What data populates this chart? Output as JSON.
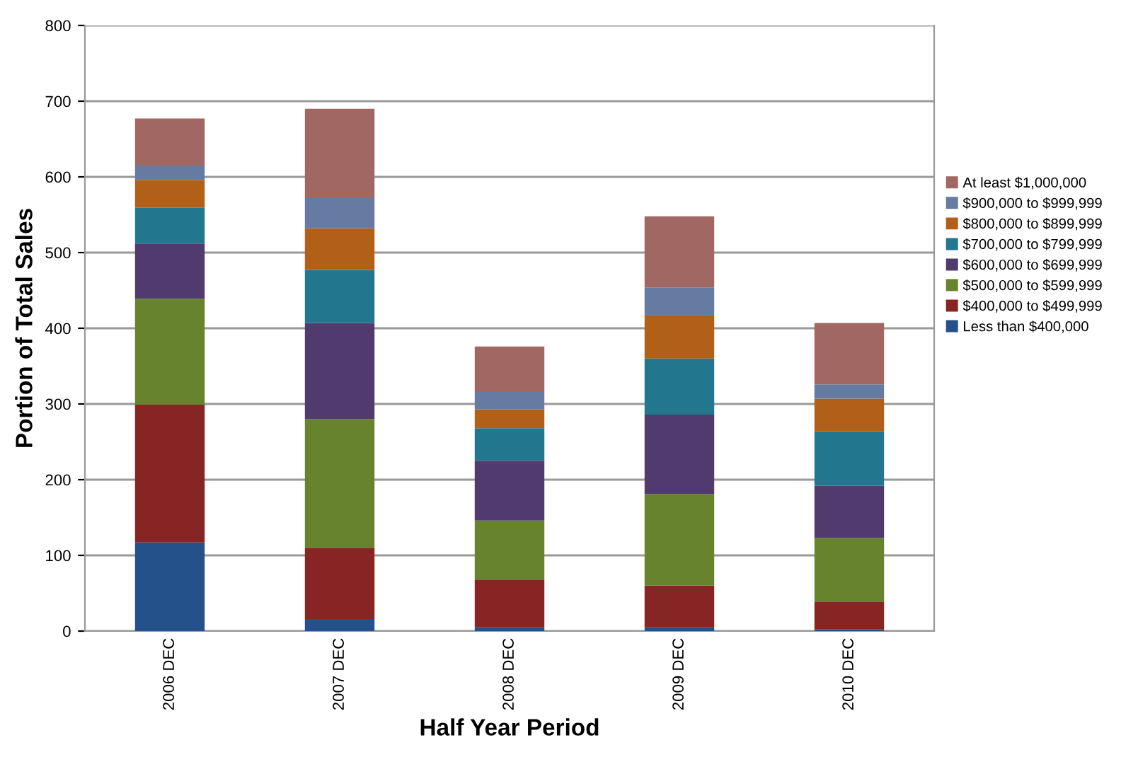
{
  "chart_data": {
    "type": "bar",
    "stacked": true,
    "xlabel": "Half Year Period",
    "ylabel": "Portion of Total Sales",
    "categories": [
      "2006 DEC",
      "2007 DEC",
      "2008 DEC",
      "2009 DEC",
      "2010 DEC"
    ],
    "series": [
      {
        "name": "Less than $400,000",
        "color": "#25518a",
        "values": [
          117,
          16,
          5,
          5,
          2
        ]
      },
      {
        "name": "$400,000 to $499,999",
        "color": "#872524",
        "values": [
          182,
          94,
          63,
          55,
          37
        ]
      },
      {
        "name": "$500,000 to $599,999",
        "color": "#68832e",
        "values": [
          140,
          170,
          78,
          121,
          84
        ]
      },
      {
        "name": "$600,000 to $699,999",
        "color": "#513a6d",
        "values": [
          73,
          127,
          79,
          105,
          69
        ]
      },
      {
        "name": "$700,000 to $799,999",
        "color": "#22778e",
        "values": [
          47,
          70,
          43,
          74,
          72
        ]
      },
      {
        "name": "$800,000 to $899,999",
        "color": "#b25f18",
        "values": [
          37,
          55,
          25,
          56,
          43
        ]
      },
      {
        "name": "$900,000 to $999,999",
        "color": "#667ba1",
        "values": [
          19,
          40,
          23,
          38,
          19
        ]
      },
      {
        "name": "At least $1,000,000",
        "color": "#a06763",
        "values": [
          62,
          118,
          60,
          94,
          81
        ]
      }
    ],
    "ylim": [
      0,
      800
    ],
    "yticks": [
      0,
      100,
      200,
      300,
      400,
      500,
      600,
      700,
      800
    ],
    "grid": "y",
    "legend": "right"
  }
}
